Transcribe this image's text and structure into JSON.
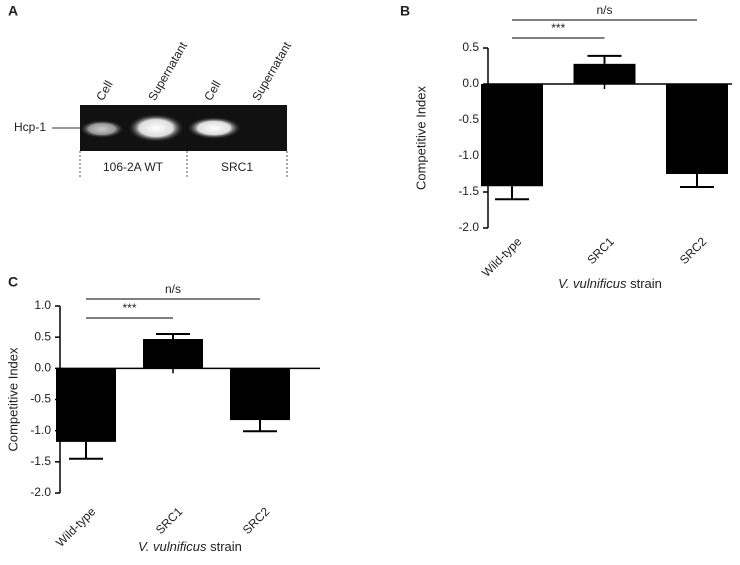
{
  "gel": {
    "panel": "A",
    "lanes": [
      "Cell",
      "Supernatant",
      "Cell",
      "Supernatant"
    ],
    "band_label": "Hcp-1",
    "groups": [
      "106-2A WT",
      "SRC1"
    ]
  },
  "chart_data": [
    {
      "type": "bar",
      "panel": "B",
      "ylabel": "Competitive Index",
      "xlabel_species": "V. vulnificus",
      "xlabel": "strain",
      "categories": [
        "Wild-type",
        "SRC1",
        "SRC2"
      ],
      "series": [
        {
          "color": "#000000",
          "values": [
            -1.42,
            0.28,
            -1.25
          ],
          "errors": [
            0.18,
            0.11,
            0.18
          ]
        }
      ],
      "ylim": [
        -2.0,
        0.5
      ],
      "yticks": [
        0.5,
        {
          "value": 0,
          "label": "0.0"
        },
        -0.5,
        {
          "value": -1,
          "label": "-1.0"
        },
        -1.5,
        {
          "value": -2,
          "label": "-2.0"
        }
      ],
      "comparisons": [
        {
          "label": "***",
          "between": [
            "Wild-type",
            "SRC1"
          ]
        },
        {
          "label": "n/s",
          "between": [
            "Wild-type",
            "SRC2"
          ]
        }
      ]
    },
    {
      "type": "bar",
      "panel": "C",
      "ylabel": "Competitive Index",
      "xlabel_species": "V. vulnificus",
      "xlabel": "strain",
      "categories": [
        "Wild-type",
        "SRC1",
        "SRC2"
      ],
      "series": [
        {
          "color": "#000000",
          "values": [
            -1.18,
            0.47,
            -0.83
          ],
          "errors": [
            0.27,
            0.08,
            0.18
          ]
        }
      ],
      "ylim": [
        -2.0,
        1.0
      ],
      "yticks": [
        {
          "value": 1,
          "label": "1.0"
        },
        0.5,
        {
          "value": 0,
          "label": "0.0"
        },
        -0.5,
        {
          "value": -1,
          "label": "-1.0"
        },
        -1.5,
        {
          "value": -2,
          "label": "-2.0"
        }
      ],
      "comparisons": [
        {
          "label": "***",
          "between": [
            "Wild-type",
            "SRC1"
          ]
        },
        {
          "label": "n/s",
          "between": [
            "Wild-type",
            "SRC2"
          ]
        }
      ]
    }
  ]
}
